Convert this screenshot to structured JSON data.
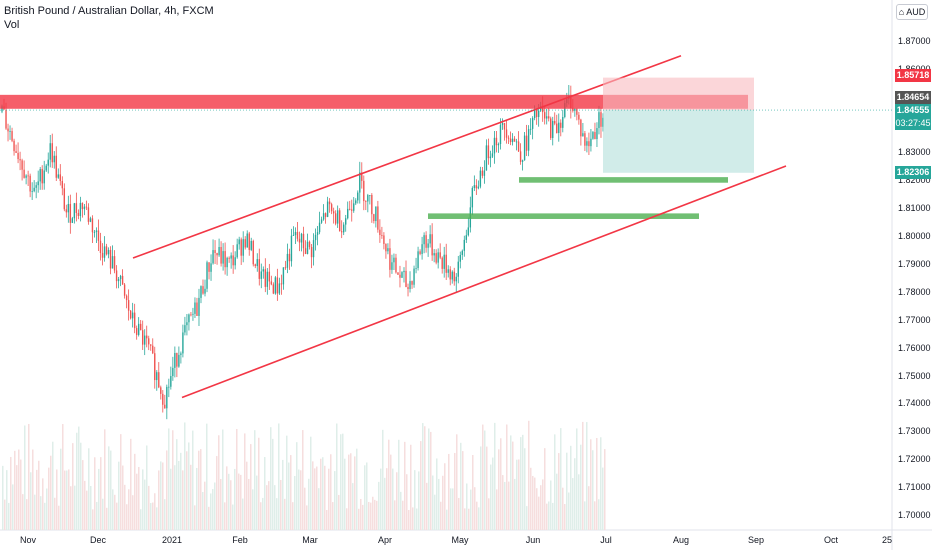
{
  "header": {
    "symbol_title": "British Pound / Australian Dollar, 4h, FXCM",
    "volume_label": "Vol",
    "currency": "AUD"
  },
  "y_axis": {
    "ticks": [
      "1.87000",
      "1.86000",
      "1.85718",
      "1.84654",
      "1.84555",
      "03:27:45",
      "1.83000",
      "1.82306",
      "1.82000",
      "1.81000",
      "1.80000",
      "1.79000",
      "1.78000",
      "1.77000",
      "1.76000",
      "1.75000",
      "1.74000",
      "1.73000",
      "1.72000",
      "1.71000",
      "1.70000"
    ]
  },
  "price_tags": {
    "target": "1.85718",
    "last_high": "1.84654",
    "current": "1.84555",
    "countdown": "03:27:45",
    "stop": "1.82306"
  },
  "x_axis": {
    "labels": [
      "Nov",
      "Dec",
      "2021",
      "Feb",
      "Mar",
      "Apr",
      "May",
      "Jun",
      "Jul",
      "Aug",
      "Sep",
      "Oct",
      "25"
    ]
  },
  "colors": {
    "resistance_zone": "#f23645",
    "support_zone": "#4caf50",
    "channel_line": "#f23645",
    "target_box": "#f8bbc0",
    "stop_box": "#b2dfdb",
    "candle_up": "#26a69a",
    "candle_down": "#ef5350",
    "tag_red": "#f23645",
    "tag_dark": "#555555",
    "tag_teal": "#26a69a"
  },
  "chart_data": {
    "type": "candlestick",
    "title": "British Pound / Australian Dollar, 4h, FXCM",
    "ylim": [
      1.695,
      1.885
    ],
    "x_labels": [
      "Nov",
      "Dec",
      "2021",
      "Feb",
      "Mar",
      "Apr",
      "May",
      "Jun",
      "Jul",
      "Aug",
      "Sep",
      "Oct",
      "25"
    ],
    "approx_close_path": [
      1.845,
      1.83,
      1.815,
      1.832,
      1.808,
      1.812,
      1.798,
      1.788,
      1.77,
      1.76,
      1.742,
      1.762,
      1.775,
      1.795,
      1.79,
      1.8,
      1.785,
      1.782,
      1.8,
      1.795,
      1.81,
      1.805,
      1.82,
      1.808,
      1.79,
      1.782,
      1.8,
      1.792,
      1.785,
      1.815,
      1.832,
      1.84,
      1.83,
      1.845,
      1.838,
      1.85,
      1.832,
      1.845
    ],
    "annotations": {
      "resistance_zone": [
        1.846,
        1.851
      ],
      "support_zone_1": [
        1.8195,
        1.8215
      ],
      "support_zone_2": [
        1.8065,
        1.8085
      ],
      "channel_upper": [
        [
          1.7925,
          1.865
        ]
      ],
      "channel_lower": [
        [
          1.7425,
          1.8185
        ]
      ],
      "target": 1.85718,
      "entry": 1.84555,
      "stop": 1.82306
    }
  }
}
